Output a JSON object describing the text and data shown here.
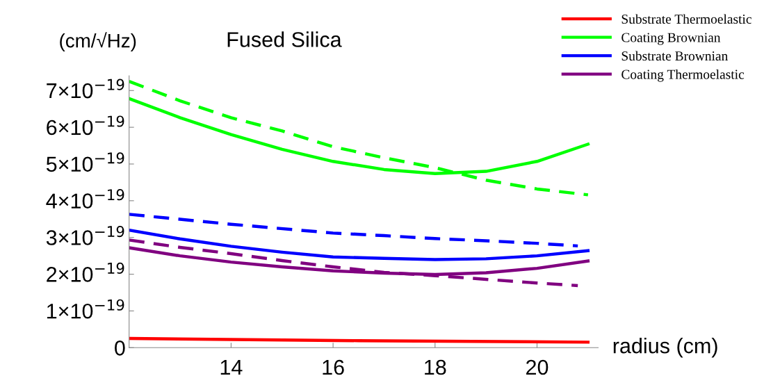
{
  "chart_data": {
    "type": "line",
    "title": "Fused Silica",
    "xlabel": "radius (cm)",
    "ylabel": "(cm/√Hz)",
    "xlim": [
      12,
      21.2
    ],
    "xticks": [
      14,
      16,
      18,
      20
    ],
    "ylim": [
      0,
      7.4e-19
    ],
    "yticks": [
      0,
      {
        "value": 1e-19,
        "label": "1×10$^{−19}$"
      },
      {
        "value": 2e-19,
        "label": "2×10$^{−19}$"
      },
      {
        "value": 3e-19,
        "label": "3×10$^{−19}$"
      },
      {
        "value": 4e-19,
        "label": "4×10$^{−19}$"
      },
      {
        "value": 5e-19,
        "label": "5×10$^{−19}$"
      },
      {
        "value": 6e-19,
        "label": "6×10$^{−19}$"
      },
      {
        "value": 7e-19,
        "label": "7×10$^{−19}$"
      }
    ],
    "grid": false,
    "legend": "top right",
    "marker": "none",
    "series": [
      {
        "name": "Substrate Thermoelastic",
        "color": "#ff0000",
        "line_style": "solid",
        "x": [
          12,
          16.5,
          21
        ],
        "values": [
          2.5e-20,
          1.9e-20,
          1.5e-20
        ]
      },
      {
        "name": "Coating Brownian",
        "color": "#00ff00",
        "line_style": "solid",
        "x": [
          12,
          13,
          14,
          15,
          16,
          17,
          18,
          19,
          20,
          21
        ],
        "values": [
          6.78e-19,
          6.26e-19,
          5.8e-19,
          5.4e-19,
          5.07e-19,
          4.85e-19,
          4.74e-19,
          4.8e-19,
          5.07e-19,
          5.54e-19
        ]
      },
      {
        "name": "Substrate Brownian",
        "color": "#0000ff",
        "line_style": "solid",
        "x": [
          12,
          13,
          14,
          15,
          16,
          17,
          18,
          19,
          20,
          21
        ],
        "values": [
          3.2e-19,
          2.96e-19,
          2.76e-19,
          2.6e-19,
          2.47e-19,
          2.43e-19,
          2.4e-19,
          2.42e-19,
          2.5e-19,
          2.64e-19
        ]
      },
      {
        "name": "Coating Thermoelastic",
        "color": "#800080",
        "line_style": "solid",
        "x": [
          12,
          13,
          14,
          15,
          16,
          17,
          18,
          19,
          20,
          21
        ],
        "values": [
          2.72e-19,
          2.5e-19,
          2.33e-19,
          2.2e-19,
          2.09e-19,
          2.03e-19,
          1.99e-19,
          2.04e-19,
          2.16e-19,
          2.36e-19
        ]
      },
      {
        "color": "#00ff00",
        "line_style": "dashed",
        "x": [
          12,
          13,
          14,
          15,
          16,
          17,
          18,
          19,
          20,
          21
        ],
        "values": [
          7.25e-19,
          6.72e-19,
          6.26e-19,
          5.9e-19,
          5.47e-19,
          5.17e-19,
          4.9e-19,
          4.56e-19,
          4.32e-19,
          4.16e-19
        ]
      },
      {
        "color": "#0000ff",
        "line_style": "dashed",
        "x": [
          12,
          14,
          16,
          17,
          18,
          19,
          20,
          20.8
        ],
        "values": [
          3.63e-19,
          3.36e-19,
          3.12e-19,
          3.05e-19,
          2.97e-19,
          2.91e-19,
          2.84e-19,
          2.77e-19
        ]
      },
      {
        "color": "#800080",
        "line_style": "dashed",
        "x": [
          12,
          13,
          14,
          15,
          16,
          17,
          18,
          19,
          20,
          20.8
        ],
        "values": [
          2.93e-19,
          2.73e-19,
          2.56e-19,
          2.37e-19,
          2.2e-19,
          2.05e-19,
          1.96e-19,
          1.86e-19,
          1.76e-19,
          1.69e-19
        ]
      }
    ]
  }
}
